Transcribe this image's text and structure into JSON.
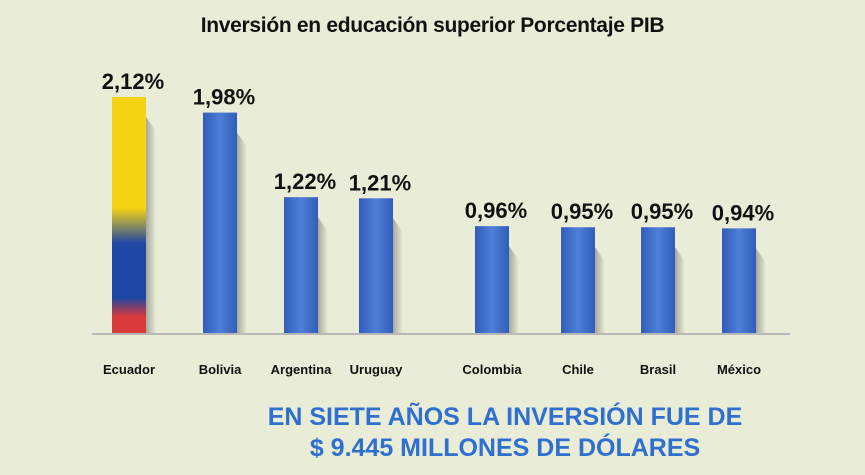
{
  "chart_data": {
    "type": "bar",
    "title": "Inversión en educación superior Porcentaje PIB",
    "categories": [
      "Ecuador",
      "Bolivia",
      "Argentina",
      "Uruguay",
      "Colombia",
      "Chile",
      "Brasil",
      "México"
    ],
    "values": [
      2.12,
      1.98,
      1.22,
      1.21,
      0.96,
      0.95,
      0.95,
      0.94
    ],
    "data_labels": [
      "2,12%",
      "1,98%",
      "1,22%",
      "1,21%",
      "0,96%",
      "0,95%",
      "0,95%",
      "0,94%"
    ],
    "xlabel": "",
    "ylabel": "",
    "ylim": [
      0,
      2.12
    ],
    "grid": false,
    "colors": {
      "bar": "#2f5db8",
      "bar_highlight": "#4f7fd6",
      "ecuador_yellow": "#f6d313",
      "ecuador_blue": "#1f47a5",
      "ecuador_red": "#d93a3a",
      "axis": "#b8b8b8",
      "label": "#111111"
    }
  },
  "footer": {
    "line1": "EN SIETE AÑOS LA INVERSIÓN FUE DE",
    "line2": "$ 9.445 MILLONES DE DÓLARES",
    "color": "#2e6fcf"
  }
}
